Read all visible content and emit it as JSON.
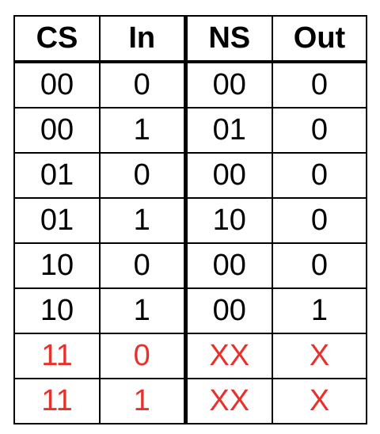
{
  "table": {
    "headers": [
      "CS",
      "In",
      "NS",
      "Out"
    ],
    "rows": [
      {
        "cs": "00",
        "in": "0",
        "ns": "00",
        "out": "0",
        "highlight": false
      },
      {
        "cs": "00",
        "in": "1",
        "ns": "01",
        "out": "0",
        "highlight": false
      },
      {
        "cs": "01",
        "in": "0",
        "ns": "00",
        "out": "0",
        "highlight": false
      },
      {
        "cs": "01",
        "in": "1",
        "ns": "10",
        "out": "0",
        "highlight": false
      },
      {
        "cs": "10",
        "in": "0",
        "ns": "00",
        "out": "0",
        "highlight": false
      },
      {
        "cs": "10",
        "in": "1",
        "ns": "00",
        "out": "1",
        "highlight": false
      },
      {
        "cs": "11",
        "in": "0",
        "ns": "XX",
        "out": "X",
        "highlight": true
      },
      {
        "cs": "11",
        "in": "1",
        "ns": "XX",
        "out": "X",
        "highlight": true
      }
    ],
    "highlight_color": "#e8312a",
    "text_color": "#000000"
  }
}
